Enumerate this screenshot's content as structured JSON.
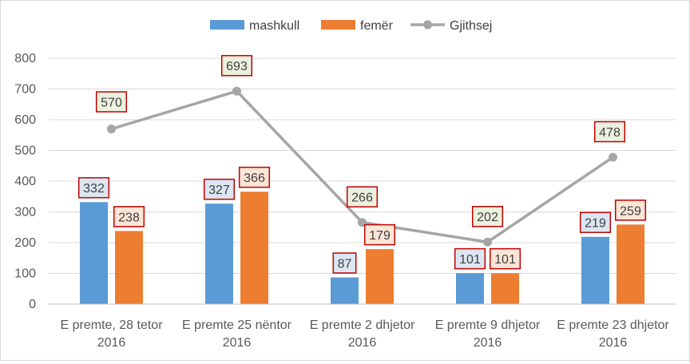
{
  "chart_data": {
    "type": "bar",
    "title": "",
    "xlabel": "",
    "ylabel": "",
    "ylim": [
      0,
      800
    ],
    "yticks": [
      0,
      100,
      200,
      300,
      400,
      500,
      600,
      700,
      800
    ],
    "grid": true,
    "legend_position": "top",
    "categories": [
      [
        "E premte, 28 tetor",
        "2016"
      ],
      [
        "E premte 25 nëntor",
        "2016"
      ],
      [
        "E premte 2 dhjetor",
        "2016"
      ],
      [
        "E premte 9 dhjetor",
        "2016"
      ],
      [
        "E premte 23 dhjetor",
        "2016"
      ]
    ],
    "series": [
      {
        "name": "mashkull",
        "type": "bar",
        "color": "#5b9bd5",
        "label_bg": "#dce6f2",
        "values": [
          332,
          327,
          87,
          101,
          219
        ]
      },
      {
        "name": "femër",
        "type": "bar",
        "color": "#ed7d31",
        "label_bg": "#fbe5d6",
        "values": [
          238,
          366,
          179,
          101,
          259
        ]
      },
      {
        "name": "Gjithsej",
        "type": "line",
        "color": "#a5a5a5",
        "label_bg": "#ebf1de",
        "values": [
          570,
          693,
          266,
          202,
          478
        ]
      }
    ],
    "label_border_color": "#c00000"
  }
}
